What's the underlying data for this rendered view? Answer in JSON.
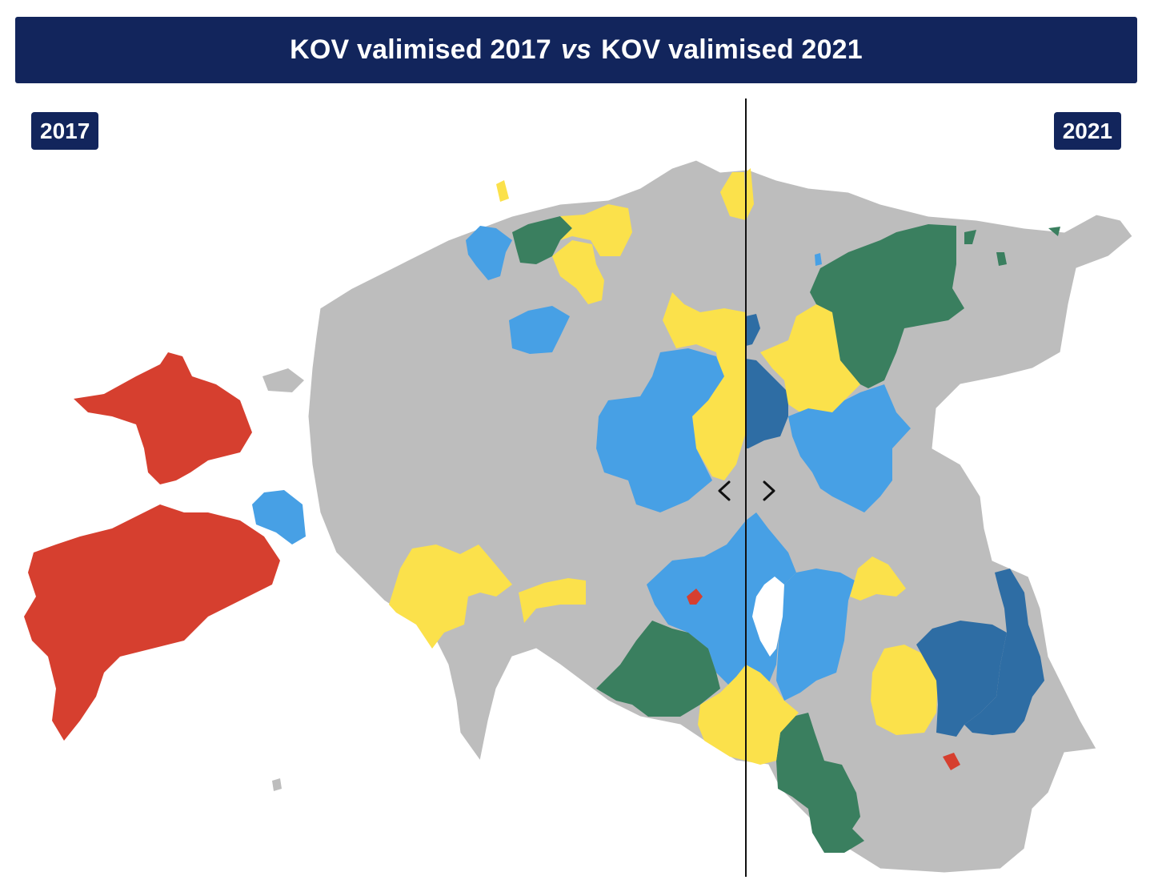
{
  "header": {
    "title_before": "KOV valimised 2017",
    "title_vs": "vs",
    "title_after": "KOV valimised 2021"
  },
  "left_badge": "2017",
  "right_badge": "2021",
  "slider": {
    "left_arrow_icon": "chevron-left-icon",
    "right_arrow_icon": "chevron-right-icon"
  },
  "colors": {
    "title_bg": "#12255c",
    "neutral": "#bdbdbd",
    "red": "#d63f2f",
    "light_blue": "#47a0e5",
    "dark_blue": "#2e6da4",
    "yellow": "#fbe14b",
    "green": "#3a7f5f",
    "lake": "#ffffff"
  }
}
